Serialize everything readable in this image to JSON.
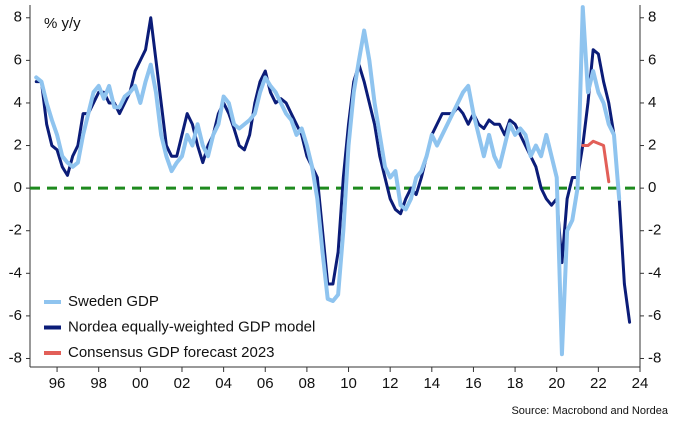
{
  "chart_data": {
    "type": "line",
    "y_label": "% y/y",
    "source": "Source: Macrobond and Nordea",
    "x": [
      1995,
      1995.25,
      1995.5,
      1995.75,
      1996,
      1996.25,
      1996.5,
      1996.75,
      1997,
      1997.25,
      1997.5,
      1997.75,
      1998,
      1998.25,
      1998.5,
      1998.75,
      1999,
      1999.25,
      1999.5,
      1999.75,
      2000,
      2000.25,
      2000.5,
      2000.75,
      2001,
      2001.25,
      2001.5,
      2001.75,
      2002,
      2002.25,
      2002.5,
      2002.75,
      2003,
      2003.25,
      2003.5,
      2003.75,
      2004,
      2004.25,
      2004.5,
      2004.75,
      2005,
      2005.25,
      2005.5,
      2005.75,
      2006,
      2006.25,
      2006.5,
      2006.75,
      2007,
      2007.25,
      2007.5,
      2007.75,
      2008,
      2008.25,
      2008.5,
      2008.75,
      2009,
      2009.25,
      2009.5,
      2009.75,
      2010,
      2010.25,
      2010.5,
      2010.75,
      2011,
      2011.25,
      2011.5,
      2011.75,
      2012,
      2012.25,
      2012.5,
      2012.75,
      2013,
      2013.25,
      2013.5,
      2013.75,
      2014,
      2014.25,
      2014.5,
      2014.75,
      2015,
      2015.25,
      2015.5,
      2015.75,
      2016,
      2016.25,
      2016.5,
      2016.75,
      2017,
      2017.25,
      2017.5,
      2017.75,
      2018,
      2018.25,
      2018.5,
      2018.75,
      2019,
      2019.25,
      2019.5,
      2019.75,
      2020,
      2020.25,
      2020.5,
      2020.75,
      2021,
      2021.25,
      2021.5,
      2021.75,
      2022,
      2022.25,
      2022.5,
      2022.75,
      2023,
      2023.25,
      2023.5
    ],
    "series": [
      {
        "name": "Nordea equally-weighted GDP model",
        "color": "#0b1c78",
        "width": 3,
        "values": [
          5.0,
          5.0,
          3.0,
          2.0,
          1.8,
          1.0,
          0.6,
          1.5,
          2.0,
          3.5,
          3.5,
          4.0,
          4.5,
          4.5,
          4.0,
          4.0,
          3.5,
          4.0,
          4.5,
          5.5,
          6.0,
          6.5,
          8.0,
          6.0,
          4.0,
          2.0,
          1.5,
          1.5,
          2.5,
          3.5,
          3.0,
          2.0,
          1.2,
          2.0,
          2.5,
          3.5,
          4.0,
          3.5,
          2.8,
          2.0,
          1.8,
          2.5,
          4.0,
          5.0,
          5.5,
          4.5,
          4.0,
          4.2,
          4.0,
          3.5,
          3.0,
          2.5,
          1.5,
          1.0,
          0.5,
          -2.0,
          -4.5,
          -4.5,
          -3.0,
          0.5,
          3.0,
          5.0,
          5.8,
          5.0,
          4.0,
          3.0,
          1.5,
          0.5,
          -0.5,
          -1.0,
          -1.2,
          -0.5,
          0.0,
          -0.3,
          0.5,
          1.5,
          2.5,
          3.0,
          3.5,
          3.5,
          3.5,
          3.8,
          3.5,
          3.0,
          3.5,
          3.0,
          2.8,
          3.2,
          3.0,
          3.0,
          2.5,
          3.2,
          3.0,
          2.5,
          2.0,
          1.5,
          1.0,
          0.0,
          -0.5,
          -0.8,
          -0.5,
          -3.5,
          -0.5,
          0.5,
          0.5,
          2.0,
          4.0,
          6.5,
          6.3,
          5.0,
          4.0,
          2.5,
          -0.5,
          -4.5,
          -6.3
        ]
      },
      {
        "name": "Sweden GDP",
        "color": "#8fc4ef",
        "width": 4,
        "values": [
          5.2,
          5.0,
          4.0,
          3.2,
          2.5,
          1.5,
          1.2,
          1.0,
          1.2,
          2.5,
          3.5,
          4.5,
          4.8,
          4.2,
          4.8,
          3.8,
          3.8,
          4.3,
          4.5,
          4.8,
          4.0,
          5.0,
          5.8,
          4.5,
          2.5,
          1.5,
          0.8,
          1.2,
          1.5,
          2.5,
          2.0,
          3.0,
          2.0,
          1.5,
          2.5,
          3.0,
          4.3,
          4.0,
          3.0,
          2.8,
          3.0,
          3.2,
          3.5,
          4.5,
          5.2,
          4.8,
          4.5,
          4.0,
          3.5,
          3.2,
          2.5,
          2.8,
          2.0,
          1.0,
          -0.5,
          -3.0,
          -5.2,
          -5.3,
          -5.0,
          -2.0,
          2.0,
          4.5,
          6.0,
          7.4,
          6.0,
          4.0,
          2.5,
          1.0,
          0.5,
          0.8,
          -0.8,
          -1.0,
          -0.5,
          0.5,
          0.8,
          1.5,
          2.5,
          2.0,
          2.5,
          3.0,
          3.5,
          4.0,
          4.5,
          4.8,
          3.5,
          2.5,
          1.5,
          2.5,
          1.5,
          1.0,
          2.0,
          3.0,
          2.5,
          2.8,
          2.5,
          1.5,
          2.0,
          1.5,
          2.5,
          1.5,
          0.5,
          -7.8,
          -2.0,
          -1.5,
          0.0,
          8.5,
          4.5,
          5.5,
          4.5,
          4.0,
          3.0,
          2.5,
          -0.5,
          null,
          null
        ]
      },
      {
        "name": "Consensus GDP forecast 2023",
        "color": "#e25f58",
        "width": 3,
        "values": [
          null,
          null,
          null,
          null,
          null,
          null,
          null,
          null,
          null,
          null,
          null,
          null,
          null,
          null,
          null,
          null,
          null,
          null,
          null,
          null,
          null,
          null,
          null,
          null,
          null,
          null,
          null,
          null,
          null,
          null,
          null,
          null,
          null,
          null,
          null,
          null,
          null,
          null,
          null,
          null,
          null,
          null,
          null,
          null,
          null,
          null,
          null,
          null,
          null,
          null,
          null,
          null,
          null,
          null,
          null,
          null,
          null,
          null,
          null,
          null,
          null,
          null,
          null,
          null,
          null,
          null,
          null,
          null,
          null,
          null,
          null,
          null,
          null,
          null,
          null,
          null,
          null,
          null,
          null,
          null,
          null,
          null,
          null,
          null,
          null,
          null,
          null,
          null,
          null,
          null,
          null,
          null,
          null,
          null,
          null,
          null,
          null,
          null,
          null,
          null,
          null,
          null,
          null,
          null,
          null,
          2.0,
          2.0,
          2.2,
          2.1,
          2.0,
          0.3,
          null,
          null,
          null,
          null
        ]
      }
    ],
    "legend_order": [
      1,
      0,
      2
    ],
    "legend": "lower left",
    "zero_line": {
      "value": 0,
      "color": "#1e8a1e",
      "style": "dashed"
    },
    "xlim": [
      1994.7,
      2024
    ],
    "xticks": [
      {
        "value": 1996,
        "label": "96"
      },
      {
        "value": 1998,
        "label": "98"
      },
      {
        "value": 2000,
        "label": "00"
      },
      {
        "value": 2002,
        "label": "02"
      },
      {
        "value": 2004,
        "label": "04"
      },
      {
        "value": 2006,
        "label": "06"
      },
      {
        "value": 2008,
        "label": "08"
      },
      {
        "value": 2010,
        "label": "10"
      },
      {
        "value": 2012,
        "label": "12"
      },
      {
        "value": 2014,
        "label": "14"
      },
      {
        "value": 2016,
        "label": "16"
      },
      {
        "value": 2018,
        "label": "18"
      },
      {
        "value": 2020,
        "label": "20"
      },
      {
        "value": 2022,
        "label": "22"
      },
      {
        "value": 2024,
        "label": "24"
      }
    ],
    "ylim": [
      -8.4,
      8.6
    ],
    "yticks": [
      -8,
      -6,
      -4,
      -2,
      0,
      2,
      4,
      6,
      8
    ],
    "y2lim": [
      -8.4,
      8.6
    ],
    "y2ticks": [
      -8,
      -6,
      -4,
      -2,
      0,
      2,
      4,
      6,
      8
    ]
  }
}
